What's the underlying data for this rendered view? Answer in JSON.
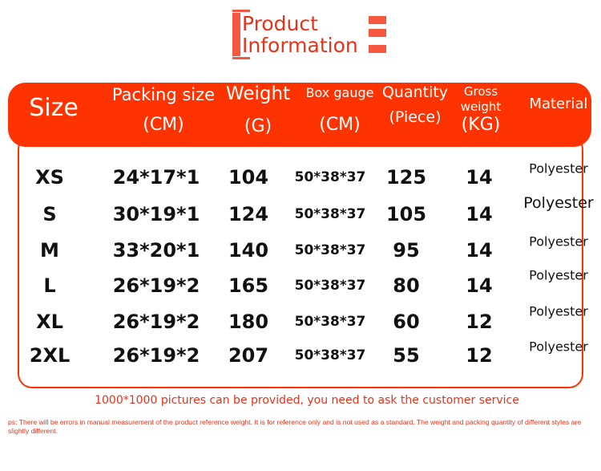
{
  "title": {
    "line1": "Product",
    "line2": "Information"
  },
  "colors": {
    "accent": "#ff3300",
    "text": "#111111"
  },
  "table": {
    "headers": [
      {
        "key": "size",
        "lines": [
          "Size"
        ]
      },
      {
        "key": "packing",
        "lines": [
          "Packing size",
          "(CM)"
        ]
      },
      {
        "key": "weight",
        "lines": [
          "Weight",
          "(G)"
        ]
      },
      {
        "key": "box",
        "lines": [
          "Box gauge",
          "(CM)"
        ]
      },
      {
        "key": "quantity",
        "lines": [
          "Quantity",
          "(Piece)"
        ]
      },
      {
        "key": "gross",
        "lines": [
          "Gross",
          "weight",
          "(KG)"
        ]
      },
      {
        "key": "material",
        "lines": [
          "Material"
        ]
      }
    ],
    "rows": [
      [
        "XS",
        "24*17*1",
        "104",
        "50*38*37",
        "125",
        "14",
        "Polyester"
      ],
      [
        "S",
        "30*19*1",
        "124",
        "50*38*37",
        "105",
        "14",
        "Polyester"
      ],
      [
        "M",
        "33*20*1",
        "140",
        "50*38*37",
        "95",
        "14",
        "Polyester"
      ],
      [
        "L",
        "26*19*2",
        "165",
        "50*38*37",
        "80",
        "14",
        "Polyester"
      ],
      [
        "XL",
        "26*19*2",
        "180",
        "50*38*37",
        "60",
        "12",
        "Polyester"
      ],
      [
        "2XL",
        "26*19*2",
        "207",
        "50*38*37",
        "55",
        "12",
        "Polyester"
      ]
    ]
  },
  "notes": {
    "pictures": "1000*1000 pictures can be provided, you need to ask the customer service",
    "ps": "ps: There will be errors in manual measurement of the product reference weight. It is for reference only and is not used as a standard. The weight and packing quantity of different styles are slightly different."
  }
}
